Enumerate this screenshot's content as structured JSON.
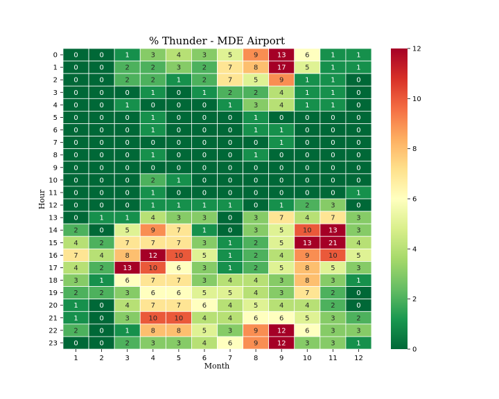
{
  "chart_data": {
    "type": "heatmap",
    "title": "% Thunder - MDE Airport",
    "xlabel": "Month",
    "ylabel": "Hour",
    "x": [
      "1",
      "2",
      "3",
      "4",
      "5",
      "6",
      "7",
      "8",
      "9",
      "10",
      "11",
      "12"
    ],
    "y": [
      "0",
      "1",
      "2",
      "3",
      "4",
      "5",
      "6",
      "7",
      "8",
      "9",
      "10",
      "11",
      "12",
      "13",
      "14",
      "15",
      "16",
      "17",
      "18",
      "19",
      "20",
      "21",
      "22",
      "23"
    ],
    "values": [
      [
        0,
        0,
        1,
        3,
        4,
        3,
        5,
        9,
        13,
        6,
        1,
        1
      ],
      [
        0,
        0,
        2,
        2,
        3,
        2,
        7,
        8,
        17,
        5,
        1,
        1
      ],
      [
        0,
        0,
        2,
        2,
        1,
        2,
        7,
        5,
        9,
        1,
        1,
        0
      ],
      [
        0,
        0,
        0,
        1,
        0,
        1,
        2,
        2,
        4,
        1,
        1,
        0
      ],
      [
        0,
        0,
        1,
        0,
        0,
        0,
        1,
        3,
        4,
        1,
        1,
        0
      ],
      [
        0,
        0,
        0,
        1,
        0,
        0,
        0,
        1,
        0,
        0,
        0,
        0
      ],
      [
        0,
        0,
        0,
        1,
        0,
        0,
        0,
        1,
        1,
        0,
        0,
        0
      ],
      [
        0,
        0,
        0,
        0,
        0,
        0,
        0,
        0,
        1,
        0,
        0,
        0
      ],
      [
        0,
        0,
        0,
        1,
        0,
        0,
        0,
        1,
        0,
        0,
        0,
        0
      ],
      [
        0,
        0,
        0,
        0,
        0,
        0,
        0,
        0,
        0,
        0,
        0,
        0
      ],
      [
        0,
        0,
        0,
        2,
        1,
        0,
        0,
        0,
        0,
        0,
        0,
        0
      ],
      [
        0,
        0,
        0,
        1,
        0,
        0,
        0,
        0,
        0,
        0,
        0,
        1
      ],
      [
        0,
        0,
        0,
        1,
        1,
        1,
        1,
        0,
        1,
        2,
        3,
        0
      ],
      [
        0,
        1,
        1,
        4,
        3,
        3,
        0,
        3,
        7,
        4,
        7,
        3
      ],
      [
        2,
        0,
        5,
        9,
        7,
        1,
        0,
        3,
        5,
        10,
        13,
        3
      ],
      [
        4,
        2,
        7,
        7,
        7,
        3,
        1,
        2,
        5,
        13,
        21,
        4
      ],
      [
        7,
        4,
        8,
        12,
        10,
        5,
        1,
        2,
        4,
        9,
        10,
        5
      ],
      [
        4,
        2,
        13,
        10,
        6,
        3,
        1,
        2,
        5,
        8,
        5,
        3
      ],
      [
        3,
        1,
        6,
        7,
        7,
        3,
        4,
        4,
        3,
        8,
        3,
        1
      ],
      [
        2,
        2,
        3,
        6,
        6,
        5,
        5,
        4,
        3,
        7,
        2,
        0
      ],
      [
        1,
        0,
        4,
        7,
        7,
        6,
        4,
        5,
        4,
        4,
        2,
        0
      ],
      [
        1,
        0,
        3,
        10,
        10,
        4,
        4,
        6,
        6,
        5,
        3,
        2
      ],
      [
        2,
        0,
        1,
        8,
        8,
        5,
        3,
        9,
        12,
        6,
        3,
        3
      ],
      [
        0,
        0,
        2,
        3,
        3,
        4,
        6,
        9,
        12,
        3,
        3,
        1
      ]
    ],
    "colormap": "RdYlGn_r",
    "vmin": 0,
    "vmax": 12,
    "colorbar_ticks": [
      0,
      2,
      4,
      6,
      8,
      10,
      12
    ]
  }
}
